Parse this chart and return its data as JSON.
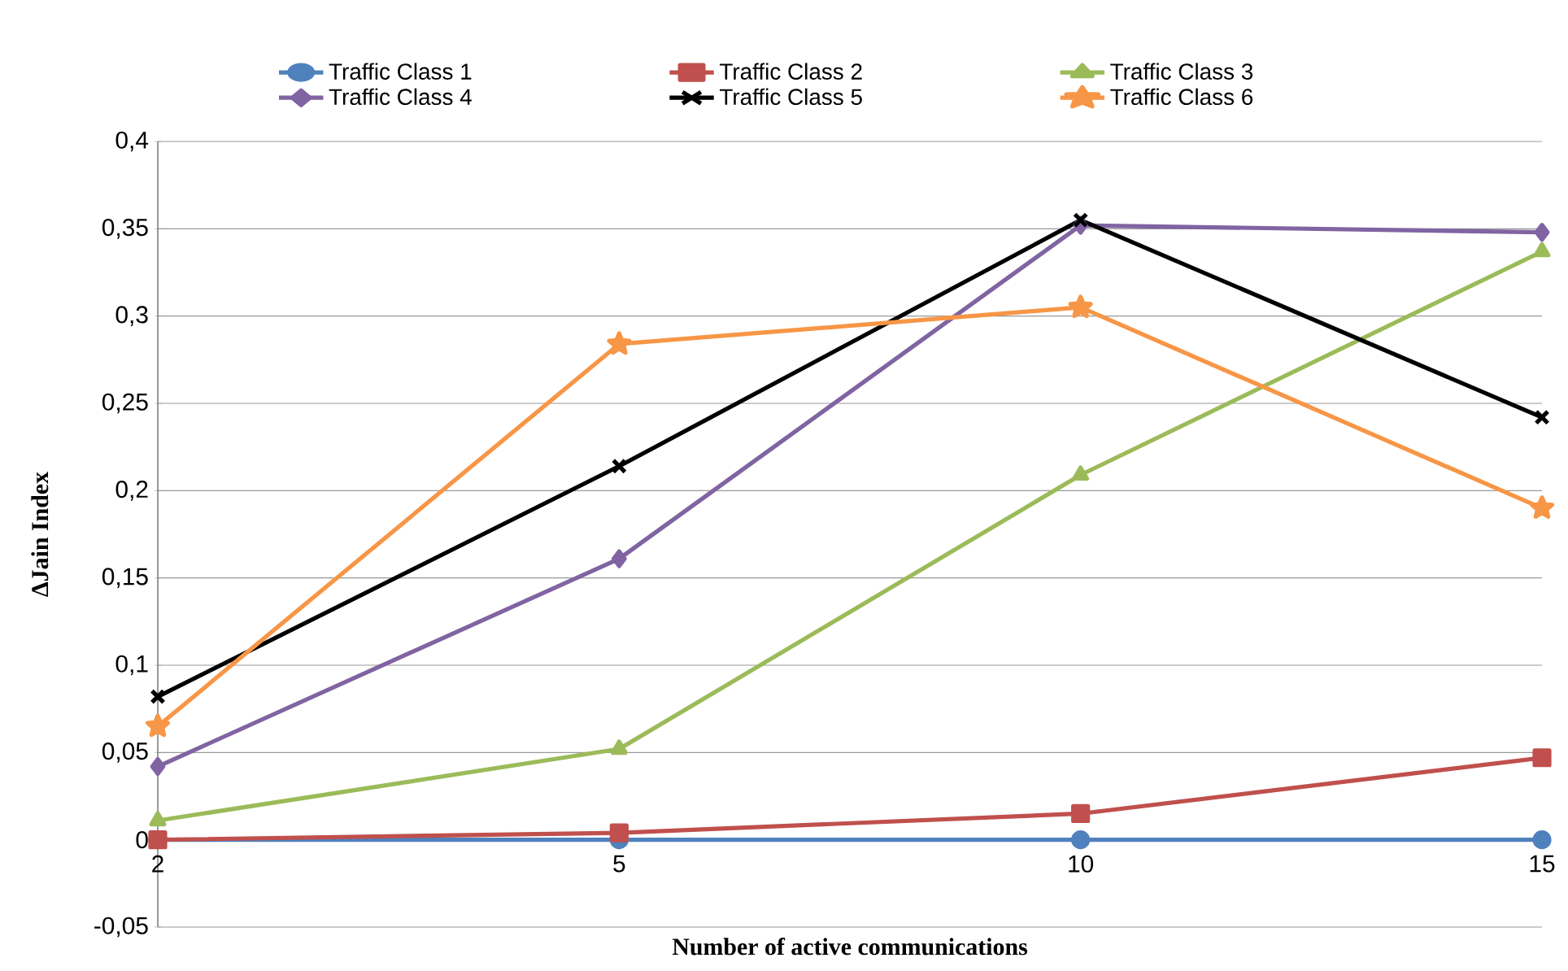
{
  "chart_data": {
    "type": "line",
    "xlabel": "Number of active communications",
    "ylabel": "ΔJain Index",
    "categories": [
      "2",
      "5",
      "10",
      "15"
    ],
    "series": [
      {
        "name": "Traffic Class 1",
        "color": "#4f81bd",
        "marker": "circle",
        "values": [
          0,
          0,
          0,
          0
        ]
      },
      {
        "name": "Traffic Class  2",
        "color": "#c0504d",
        "marker": "square",
        "values": [
          0,
          0.004,
          0.015,
          0.047
        ]
      },
      {
        "name": "Traffic Class  3",
        "color": "#9bbb59",
        "marker": "triangle",
        "values": [
          0.011,
          0.052,
          0.209,
          0.337
        ]
      },
      {
        "name": "Traffic Class  4",
        "color": "#8064a2",
        "marker": "diamond",
        "values": [
          0.042,
          0.161,
          0.352,
          0.348
        ]
      },
      {
        "name": "Traffic Class  5",
        "color": "#000000",
        "marker": "cross",
        "values": [
          0.082,
          0.214,
          0.355,
          0.242
        ]
      },
      {
        "name": "Traffic Class  6",
        "color": "#f79646",
        "marker": "star",
        "values": [
          0.065,
          0.284,
          0.305,
          0.19
        ]
      }
    ],
    "ylim": [
      -0.05,
      0.4
    ],
    "yticks": [
      {
        "value": -0.05,
        "label": "-0,05"
      },
      0,
      {
        "value": 0.05,
        "label": "0,05"
      },
      {
        "value": 0.1,
        "label": "0,1"
      },
      {
        "value": 0.15,
        "label": "0,15"
      },
      {
        "value": 0.2,
        "label": "0,2"
      },
      {
        "value": 0.25,
        "label": "0,25"
      },
      {
        "value": 0.3,
        "label": "0,3"
      },
      {
        "value": 0.35,
        "label": "0,35"
      },
      {
        "value": 0.4,
        "label": "0,4"
      }
    ],
    "grid": "y",
    "legend": "top",
    "line_style": "solid"
  }
}
